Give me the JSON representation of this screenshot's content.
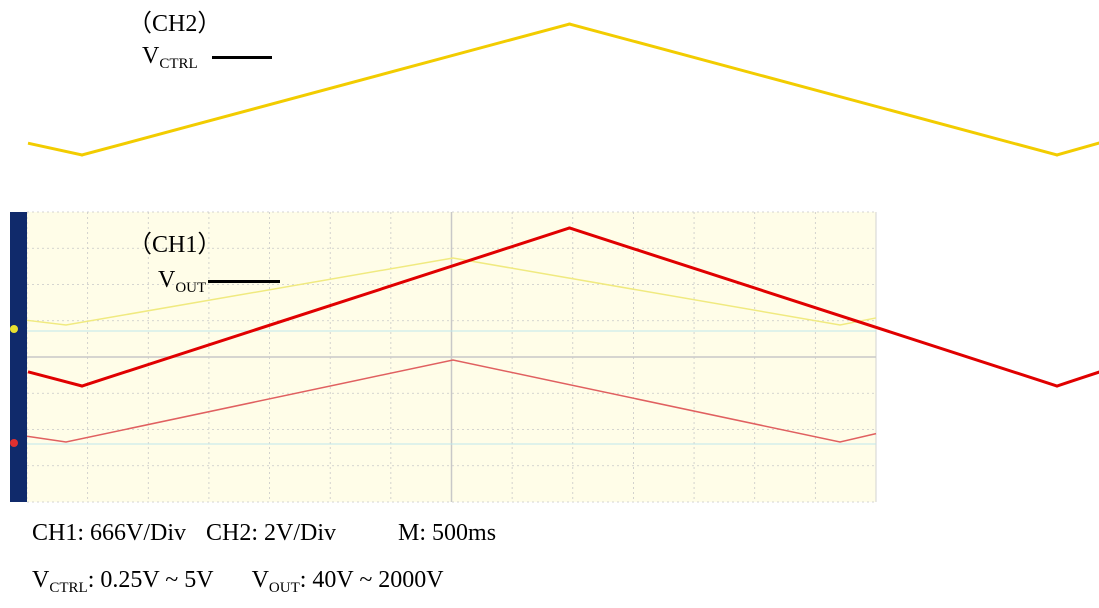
{
  "chart_data": {
    "type": "line",
    "series": [
      {
        "name": "CH2",
        "label_main": "V",
        "label_sub": "CTRL",
        "color": "#f2cc00",
        "x": [
          0,
          0.5,
          1.0,
          1.05
        ],
        "values": [
          0.25,
          5,
          0.25,
          0.75
        ]
      },
      {
        "name": "CH1",
        "label_main": "V",
        "label_sub": "OUT",
        "color": "#e00000",
        "x": [
          0,
          0.5,
          1.0,
          1.05
        ],
        "values": [
          40,
          2000,
          40,
          240
        ]
      }
    ],
    "xlabel": "",
    "ylabel": ""
  },
  "captions": {
    "ch1": "CH1: 666V/Div",
    "ch2": "CH2: 2V/Div",
    "timebase": "M: 500ms",
    "vctrl_main": "V",
    "vctrl_sub": "CTRL",
    "vctrl_range": ": 0.25V ~ 5V",
    "vout_main": "V",
    "vout_sub": "OUT",
    "vout_range": ": 40V ~ 2000V"
  },
  "labels": {
    "ch2_name": "（CH2）",
    "ch1_name": "（CH1）"
  },
  "scope": {
    "background": "#fffde8",
    "left_bar": "#102a6b",
    "grid": "#c8c8c8",
    "baseline": "#bfe6ec",
    "trace_yellow": "#f0ea80",
    "trace_red": "#e06060"
  }
}
